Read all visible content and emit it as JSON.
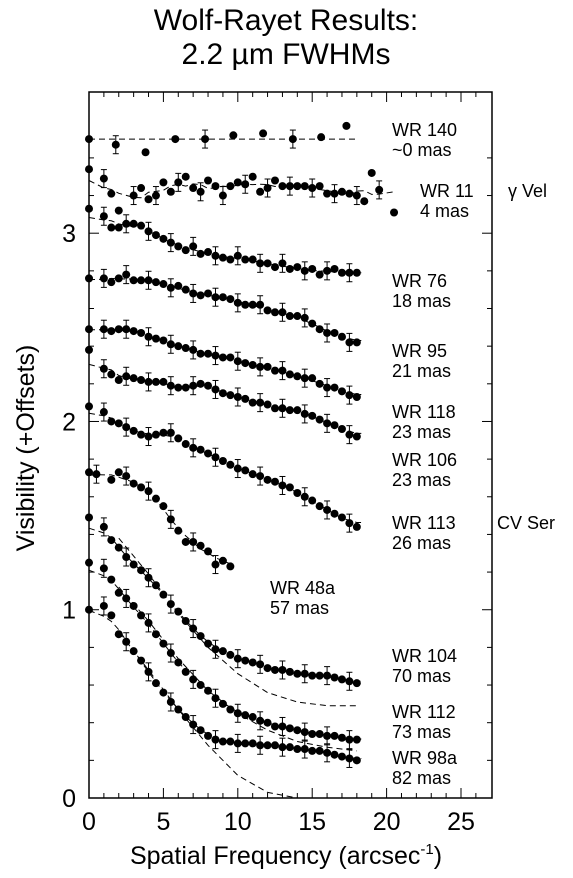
{
  "chart_data": {
    "type": "scatter",
    "title": [
      "Wolf-Rayet Results:",
      "2.2 µm FWHMs"
    ],
    "xlabel": "Spatial Frequency (arcsec",
    "xlabel_superscript": "-1",
    "xlabel_suffix": ")",
    "ylabel": "Visibility (+Offsets)",
    "xlim": [
      0,
      27
    ],
    "ylim": [
      0,
      3.75
    ],
    "x_ticks": [
      "0",
      "5",
      "10",
      "15",
      "20",
      "25"
    ],
    "x_tick_values": [
      0,
      5,
      10,
      15,
      20,
      25
    ],
    "y_ticks": [
      "0",
      "1",
      "2",
      "3"
    ],
    "y_tick_values": [
      0,
      1,
      2,
      3
    ],
    "marker": "filled-circle",
    "model_line_style": "dashed",
    "series": [
      {
        "name": "WR 140",
        "size": "~0 mas",
        "offset": 3.5,
        "x": [
          0,
          1.8,
          3.8,
          5.8,
          7.8,
          9.7,
          11.7,
          13.7,
          15.6,
          17.3
        ],
        "y": [
          3.5,
          3.47,
          3.43,
          3.5,
          3.5,
          3.52,
          3.53,
          3.5,
          3.51,
          3.57
        ]
      },
      {
        "name": "WR 11",
        "extra_label": "γ Vel",
        "size": "4 mas",
        "offset": 3.25,
        "x": [
          0,
          1,
          1.5,
          2,
          3,
          3.5,
          4,
          4.5,
          5,
          5.5,
          6,
          6.5,
          7,
          7.5,
          8,
          8.5,
          9,
          9.5,
          10,
          10.5,
          11,
          11.5,
          12,
          12.5,
          13,
          13.5,
          14,
          14.5,
          15,
          15.5,
          16,
          16.5,
          17,
          17.5,
          18,
          18.5,
          19,
          19.5,
          20.5
        ],
        "y": [
          3.34,
          3.29,
          3.21,
          3.12,
          3.2,
          3.24,
          3.18,
          3.2,
          3.27,
          3.22,
          3.27,
          3.3,
          3.24,
          3.22,
          3.28,
          3.25,
          3.2,
          3.25,
          3.27,
          3.26,
          3.3,
          3.22,
          3.24,
          3.28,
          3.25,
          3.25,
          3.25,
          3.25,
          3.24,
          3.25,
          3.21,
          3.21,
          3.22,
          3.21,
          3.2,
          3.17,
          3.32,
          3.23,
          3.11
        ]
      },
      {
        "name": "WR 76",
        "size": "18 mas",
        "offset": 2.75,
        "x": [
          0,
          1,
          1.5,
          2,
          2.5,
          3,
          3.5,
          4,
          4.5,
          5,
          5.5,
          6,
          6.5,
          7,
          7.5,
          8,
          8.5,
          9,
          9.5,
          10,
          10.5,
          11,
          11.5,
          12,
          12.5,
          13,
          13.5,
          14,
          14.5,
          15,
          15.5,
          16,
          16.5,
          17,
          17.5,
          18
        ],
        "y": [
          3.13,
          3.09,
          3.03,
          3.03,
          3.05,
          3.05,
          3.04,
          3.01,
          2.99,
          2.97,
          2.95,
          2.93,
          2.91,
          2.93,
          2.89,
          2.9,
          2.88,
          2.87,
          2.86,
          2.88,
          2.86,
          2.86,
          2.84,
          2.84,
          2.82,
          2.84,
          2.81,
          2.82,
          2.8,
          2.81,
          2.78,
          2.8,
          2.81,
          2.79,
          2.79,
          2.79
        ]
      },
      {
        "name": "WR 95",
        "size": "21 mas",
        "offset": 2.45,
        "x": [
          0,
          1,
          1.5,
          2,
          2.5,
          3,
          3.5,
          4,
          4.5,
          5,
          5.5,
          6,
          6.5,
          7,
          7.5,
          8,
          8.5,
          9,
          9.5,
          10,
          10.5,
          11,
          11.5,
          12,
          12.5,
          13,
          13.5,
          14,
          14.5,
          15,
          15.5,
          16,
          16.5,
          17,
          17.5,
          18
        ],
        "y": [
          2.76,
          2.76,
          2.74,
          2.76,
          2.78,
          2.75,
          2.75,
          2.75,
          2.74,
          2.73,
          2.71,
          2.72,
          2.7,
          2.68,
          2.67,
          2.68,
          2.66,
          2.66,
          2.65,
          2.63,
          2.62,
          2.62,
          2.62,
          2.59,
          2.58,
          2.58,
          2.56,
          2.56,
          2.55,
          2.52,
          2.49,
          2.47,
          2.47,
          2.45,
          2.42,
          2.42
        ]
      },
      {
        "name": "WR 118",
        "size": "23 mas",
        "offset": 2.2,
        "x": [
          0,
          1,
          1.5,
          2,
          2.5,
          3,
          3.5,
          4,
          4.5,
          5,
          5.5,
          6,
          6.5,
          7,
          7.5,
          8,
          8.5,
          9,
          9.5,
          10,
          10.5,
          11,
          11.5,
          12,
          12.5,
          13,
          13.5,
          14,
          14.5,
          15,
          15.5,
          16,
          16.5,
          17,
          17.5,
          18
        ],
        "y": [
          2.49,
          2.49,
          2.48,
          2.49,
          2.49,
          2.48,
          2.47,
          2.45,
          2.44,
          2.43,
          2.41,
          2.4,
          2.39,
          2.38,
          2.36,
          2.36,
          2.35,
          2.34,
          2.34,
          2.32,
          2.31,
          2.3,
          2.29,
          2.29,
          2.27,
          2.27,
          2.25,
          2.24,
          2.23,
          2.23,
          2.2,
          2.18,
          2.18,
          2.16,
          2.14,
          2.13
        ]
      },
      {
        "name": "WR 106",
        "size": "23 mas",
        "offset": 1.75,
        "x": [
          0,
          1,
          1.5,
          2,
          2.5,
          3,
          3.5,
          4,
          4.5,
          5,
          5.5,
          6,
          6.5,
          7,
          7.5,
          8,
          8.5,
          9,
          9.5,
          10,
          10.5,
          11,
          11.5,
          12,
          12.5,
          13,
          13.5,
          14,
          14.5,
          15,
          15.5,
          16,
          16.5,
          17,
          17.5,
          18
        ],
        "y": [
          2.38,
          2.28,
          2.25,
          2.22,
          2.24,
          2.23,
          2.22,
          2.21,
          2.21,
          2.21,
          2.19,
          2.18,
          2.18,
          2.19,
          2.2,
          2.19,
          2.17,
          2.15,
          2.14,
          2.13,
          2.12,
          2.1,
          2.1,
          2.09,
          2.07,
          2.07,
          2.06,
          2.06,
          2.04,
          2.03,
          2.01,
          1.99,
          1.98,
          1.96,
          1.93,
          1.92
        ]
      },
      {
        "name": "WR 113",
        "extra_label": "CV Ser",
        "size": "26 mas",
        "offset": 1.3,
        "x": [
          0,
          1,
          1.5,
          2,
          2.5,
          3,
          3.5,
          4,
          4.5,
          5,
          5.5,
          6,
          6.5,
          7,
          7.5,
          8,
          8.5,
          9,
          9.5,
          10,
          10.5,
          11,
          11.5,
          12,
          12.5,
          13,
          13.5,
          14,
          14.5,
          15,
          15.5,
          16,
          16.5,
          17,
          17.5,
          18
        ],
        "y": [
          2.08,
          2.05,
          2.0,
          1.99,
          1.97,
          1.95,
          1.93,
          1.92,
          1.93,
          1.94,
          1.94,
          1.91,
          1.88,
          1.86,
          1.85,
          1.83,
          1.81,
          1.79,
          1.77,
          1.75,
          1.74,
          1.72,
          1.71,
          1.69,
          1.68,
          1.66,
          1.65,
          1.62,
          1.6,
          1.58,
          1.55,
          1.53,
          1.51,
          1.49,
          1.46,
          1.44
        ]
      },
      {
        "name": "WR 48a",
        "size": "57 mas",
        "offset": 1.25,
        "x": [
          0,
          0.5,
          1.5,
          2,
          2.5,
          3,
          3.5,
          4,
          4.5,
          5,
          5.5,
          6,
          6.5,
          7,
          7.5,
          8,
          8.5,
          9,
          9.5
        ],
        "y": [
          1.73,
          1.72,
          1.69,
          1.73,
          1.71,
          1.67,
          1.65,
          1.63,
          1.59,
          1.55,
          1.48,
          1.42,
          1.36,
          1.36,
          1.34,
          1.31,
          1.24,
          1.26,
          1.23
        ]
      },
      {
        "name": "WR 104",
        "size": "70 mas",
        "offset": 0.5,
        "x": [
          0,
          1,
          1.5,
          2,
          2.5,
          3,
          3.5,
          4,
          4.5,
          5,
          5.5,
          6,
          6.5,
          7,
          7.5,
          8,
          8.5,
          9,
          9.5,
          10,
          10.5,
          11,
          11.5,
          12,
          12.5,
          13,
          13.5,
          14,
          14.5,
          15,
          15.5,
          16,
          16.5,
          17,
          17.5,
          18
        ],
        "y": [
          1.49,
          1.44,
          1.37,
          1.33,
          1.28,
          1.24,
          1.21,
          1.17,
          1.13,
          1.08,
          1.03,
          0.99,
          0.94,
          0.9,
          0.86,
          0.82,
          0.79,
          0.78,
          0.76,
          0.74,
          0.73,
          0.72,
          0.71,
          0.69,
          0.68,
          0.68,
          0.67,
          0.66,
          0.66,
          0.65,
          0.65,
          0.65,
          0.64,
          0.63,
          0.62,
          0.61
        ]
      },
      {
        "name": "WR 112",
        "size": "73 mas",
        "offset": 0.25,
        "x": [
          0,
          1,
          1.5,
          2,
          2.5,
          3,
          3.5,
          4,
          4.5,
          5,
          5.5,
          6,
          6.5,
          7,
          7.5,
          8,
          8.5,
          9,
          9.5,
          10,
          10.5,
          11,
          11.5,
          12,
          12.5,
          13,
          13.5,
          14,
          14.5,
          15,
          15.5,
          16,
          16.5,
          17,
          17.5,
          18
        ],
        "y": [
          1.25,
          1.22,
          1.16,
          1.09,
          1.06,
          1.02,
          0.97,
          0.93,
          0.87,
          0.82,
          0.77,
          0.72,
          0.67,
          0.63,
          0.6,
          0.57,
          0.53,
          0.5,
          0.47,
          0.45,
          0.44,
          0.43,
          0.41,
          0.4,
          0.38,
          0.38,
          0.37,
          0.36,
          0.35,
          0.34,
          0.34,
          0.33,
          0.33,
          0.32,
          0.31,
          0.31
        ]
      },
      {
        "name": "WR 98a",
        "size": "82 mas",
        "offset": 0.0,
        "x": [
          0,
          1,
          1.5,
          2,
          2.5,
          3,
          3.5,
          4,
          4.5,
          5,
          5.5,
          6,
          6.5,
          7,
          7.5,
          8,
          8.5,
          9,
          9.5,
          10,
          10.5,
          11,
          11.5,
          12,
          12.5,
          13,
          13.5,
          14,
          14.5,
          15,
          15.5,
          16,
          16.5,
          17,
          17.5,
          18
        ],
        "y": [
          1.0,
          1.02,
          0.97,
          0.87,
          0.83,
          0.78,
          0.73,
          0.67,
          0.61,
          0.56,
          0.51,
          0.47,
          0.43,
          0.39,
          0.36,
          0.33,
          0.31,
          0.3,
          0.3,
          0.29,
          0.29,
          0.29,
          0.28,
          0.28,
          0.28,
          0.27,
          0.27,
          0.26,
          0.26,
          0.25,
          0.25,
          0.24,
          0.23,
          0.22,
          0.21,
          0.2
        ]
      }
    ]
  }
}
